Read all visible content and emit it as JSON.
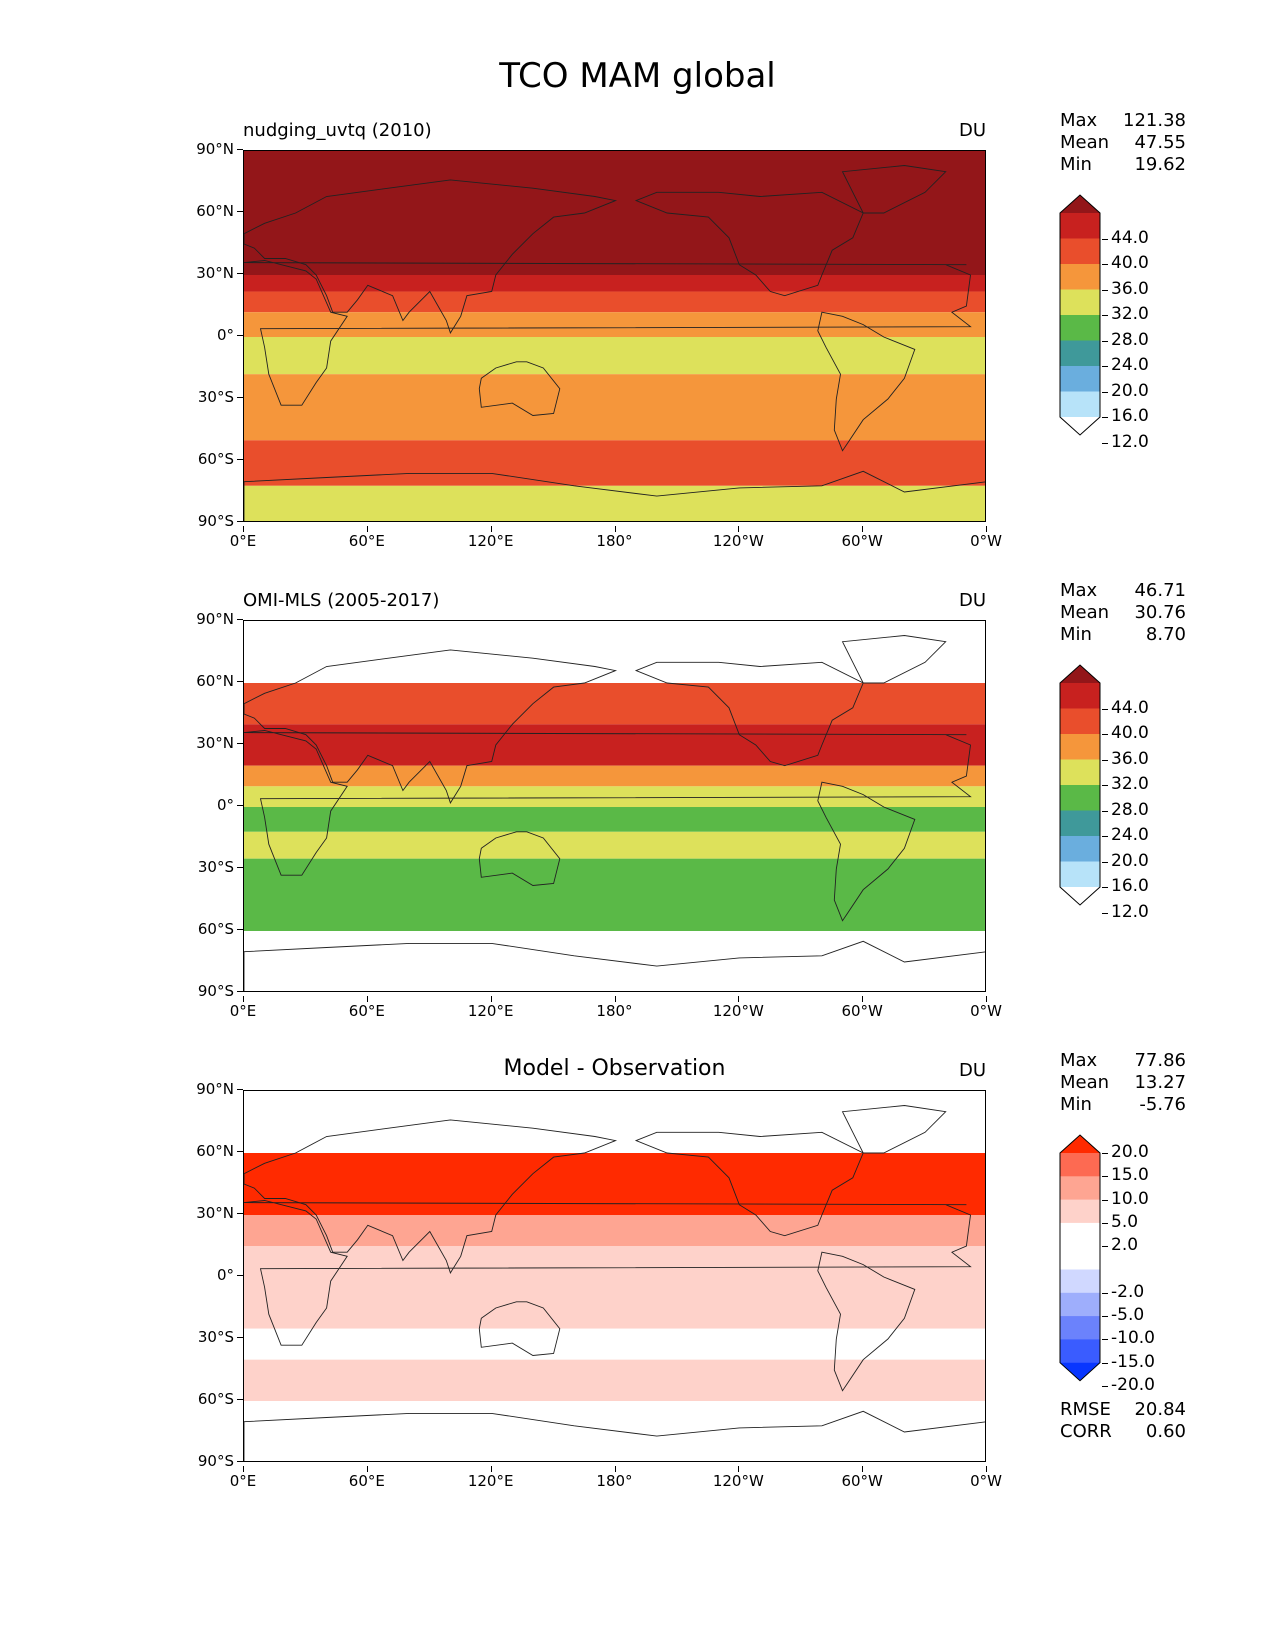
{
  "figure": {
    "title": "TCO MAM global"
  },
  "axes": {
    "y_ticks": [
      "90°N",
      "60°N",
      "30°N",
      "0°",
      "30°S",
      "60°S",
      "90°S"
    ],
    "x_ticks": [
      "0°E",
      "60°E",
      "120°E",
      "180°",
      "120°W",
      "60°W",
      "0°W"
    ]
  },
  "panels": [
    {
      "title": "nudging_uvtq (2010)",
      "center_title": "",
      "units": "DU",
      "stats": [
        {
          "label": "Max",
          "value": "121.38"
        },
        {
          "label": "Mean",
          "value": "47.55"
        },
        {
          "label": "Min",
          "value": "19.62"
        }
      ],
      "colorbar": {
        "levels": [
          "44.0",
          "40.0",
          "36.0",
          "32.0",
          "28.0",
          "24.0",
          "20.0",
          "16.0",
          "12.0"
        ],
        "colors": [
          "#931619",
          "#c8211f",
          "#e94e2c",
          "#f5963b",
          "#dde15b",
          "#5ab947",
          "#3f999a",
          "#6aaede",
          "#b7e3f9",
          "#ffffff"
        ]
      },
      "extra_stats": []
    },
    {
      "title": "OMI-MLS (2005-2017)",
      "center_title": "",
      "units": "DU",
      "stats": [
        {
          "label": "Max",
          "value": "46.71"
        },
        {
          "label": "Mean",
          "value": "30.76"
        },
        {
          "label": "Min",
          "value": "8.70"
        }
      ],
      "colorbar": {
        "levels": [
          "44.0",
          "40.0",
          "36.0",
          "32.0",
          "28.0",
          "24.0",
          "20.0",
          "16.0",
          "12.0"
        ],
        "colors": [
          "#931619",
          "#c8211f",
          "#e94e2c",
          "#f5963b",
          "#dde15b",
          "#5ab947",
          "#3f999a",
          "#6aaede",
          "#b7e3f9",
          "#ffffff"
        ]
      },
      "extra_stats": []
    },
    {
      "title": "",
      "center_title": "Model - Observation",
      "units": "DU",
      "stats": [
        {
          "label": "Max",
          "value": "77.86"
        },
        {
          "label": "Mean",
          "value": "13.27"
        },
        {
          "label": "Min",
          "value": "-5.76"
        }
      ],
      "colorbar": {
        "levels": [
          "20.0",
          "15.0",
          "10.0",
          "5.0",
          "2.0",
          "-2.0",
          "-5.0",
          "-10.0",
          "-15.0",
          "-20.0"
        ],
        "colors": [
          "#ff2a00",
          "#fd6a52",
          "#fea592",
          "#fed2ca",
          "#ffffff",
          "#ffffff",
          "#d0d8ff",
          "#9eaefc",
          "#6b82fc",
          "#3a5cff",
          "#0836ff"
        ]
      },
      "extra_stats": [
        {
          "label": "RMSE",
          "value": "20.84"
        },
        {
          "label": "CORR",
          "value": "0.60"
        }
      ]
    }
  ],
  "chart_data": [
    {
      "type": "heatmap",
      "title": "nudging_uvtq (2010)",
      "units": "DU",
      "lon_ticks": [
        "0°E",
        "60°E",
        "120°E",
        "180°",
        "120°W",
        "60°W",
        "0°W"
      ],
      "lat_ticks": [
        "90°N",
        "60°N",
        "30°N",
        "0°",
        "30°S",
        "60°S",
        "90°S"
      ],
      "lat_range": [
        -90,
        90
      ],
      "lon_range": [
        0,
        360
      ],
      "zonal_bands": [
        {
          "lat_range": [
            90,
            30
          ],
          "level": ">44"
        },
        {
          "lat_range": [
            30,
            22
          ],
          "level": "40-44"
        },
        {
          "lat_range": [
            22,
            12
          ],
          "level": "36-40"
        },
        {
          "lat_range": [
            12,
            0
          ],
          "level": "32-36"
        },
        {
          "lat_range": [
            0,
            -18
          ],
          "level": "28-32"
        },
        {
          "lat_range": [
            -18,
            -50
          ],
          "level": "32-36"
        },
        {
          "lat_range": [
            -50,
            -72
          ],
          "level": "36-40"
        },
        {
          "lat_range": [
            -72,
            -90
          ],
          "level": "28-32"
        }
      ],
      "stats": {
        "max": 121.38,
        "mean": 47.55,
        "min": 19.62
      }
    },
    {
      "type": "heatmap",
      "title": "OMI-MLS (2005-2017)",
      "units": "DU",
      "lat_range": [
        -90,
        90
      ],
      "data_lat_range": [
        -60,
        60
      ],
      "zonal_bands": [
        {
          "lat_range": [
            60,
            40
          ],
          "level": "36-40"
        },
        {
          "lat_range": [
            40,
            20
          ],
          "level": "40-44"
        },
        {
          "lat_range": [
            20,
            10
          ],
          "level": "32-36"
        },
        {
          "lat_range": [
            10,
            0
          ],
          "level": "28-32"
        },
        {
          "lat_range": [
            0,
            -12
          ],
          "level": "24-28"
        },
        {
          "lat_range": [
            -12,
            -25
          ],
          "level": "28-32"
        },
        {
          "lat_range": [
            -25,
            -60
          ],
          "level": "24-28"
        }
      ],
      "stats": {
        "max": 46.71,
        "mean": 30.76,
        "min": 8.7
      }
    },
    {
      "type": "heatmap",
      "title": "Model - Observation",
      "units": "DU",
      "lat_range": [
        -90,
        90
      ],
      "data_lat_range": [
        -60,
        60
      ],
      "zonal_bands": [
        {
          "lat_range": [
            60,
            30
          ],
          "level": ">20"
        },
        {
          "lat_range": [
            30,
            15
          ],
          "level": "10-15"
        },
        {
          "lat_range": [
            15,
            -25
          ],
          "level": "5-10"
        },
        {
          "lat_range": [
            -25,
            -40
          ],
          "level": "2-5"
        },
        {
          "lat_range": [
            -40,
            -60
          ],
          "level": "5-10"
        }
      ],
      "stats": {
        "max": 77.86,
        "mean": 13.27,
        "min": -5.76,
        "rmse": 20.84,
        "corr": 0.6
      }
    }
  ]
}
